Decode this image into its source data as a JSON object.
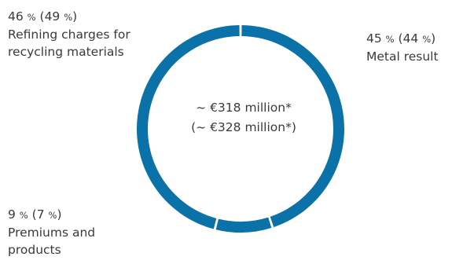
{
  "chart_data": {
    "type": "pie",
    "style": "donut",
    "color": "#0a72a8",
    "center_label": {
      "line1": "~ €318 million*",
      "line2": "(~ €328 million*)"
    },
    "slices": [
      {
        "label_lines": [
          "Metal result"
        ],
        "value": 45,
        "value_prior": 44,
        "value_text": "45 % (44 %)"
      },
      {
        "label_lines": [
          "Premiums and",
          "products"
        ],
        "value": 9,
        "value_prior": 7,
        "value_text": "9 % (7 %)"
      },
      {
        "label_lines": [
          "Refining charges for",
          "recycling materials"
        ],
        "value": 46,
        "value_prior": 49,
        "value_text": "46 % (49 %)"
      }
    ]
  }
}
